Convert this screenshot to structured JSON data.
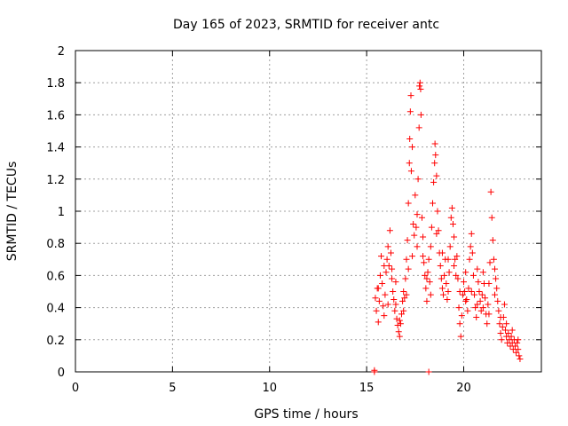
{
  "chart_data": {
    "type": "scatter",
    "title": "Day 165 of 2023, SRMTID for receiver antc",
    "xlabel": "GPS time / hours",
    "ylabel": "SRMTID / TECUs",
    "xlim": [
      0,
      24
    ],
    "ylim": [
      0,
      2
    ],
    "xticks": [
      "0",
      "5",
      "10",
      "15",
      "20"
    ],
    "xtick_values": [
      0,
      5,
      10,
      15,
      20
    ],
    "yticks": [
      "0",
      "0.2",
      "0.4",
      "0.6",
      "0.8",
      "1",
      "1.2",
      "1.4",
      "1.6",
      "1.8",
      "2"
    ],
    "ytick_values": [
      0,
      0.2,
      0.4,
      0.6,
      0.8,
      1.0,
      1.2,
      1.4,
      1.6,
      1.8,
      2.0
    ],
    "grid": true,
    "marker": "+",
    "series_color": "#ff0000",
    "series": [
      {
        "name": "SRMTID",
        "points": [
          [
            15.4,
            0.0
          ],
          [
            15.4,
            0.01
          ],
          [
            18.2,
            0.0
          ],
          [
            15.45,
            0.46
          ],
          [
            15.5,
            0.38
          ],
          [
            15.55,
            0.52
          ],
          [
            15.6,
            0.31
          ],
          [
            15.65,
            0.44
          ],
          [
            15.7,
            0.6
          ],
          [
            15.75,
            0.72
          ],
          [
            15.8,
            0.55
          ],
          [
            15.85,
            0.41
          ],
          [
            15.9,
            0.35
          ],
          [
            15.95,
            0.48
          ],
          [
            16.0,
            0.62
          ],
          [
            16.05,
            0.7
          ],
          [
            16.1,
            0.78
          ],
          [
            16.15,
            0.66
          ],
          [
            16.2,
            0.88
          ],
          [
            16.25,
            0.74
          ],
          [
            16.3,
            0.58
          ],
          [
            16.35,
            0.5
          ],
          [
            16.4,
            0.45
          ],
          [
            16.45,
            0.38
          ],
          [
            16.5,
            0.42
          ],
          [
            16.55,
            0.33
          ],
          [
            16.6,
            0.29
          ],
          [
            16.65,
            0.25
          ],
          [
            16.7,
            0.22
          ],
          [
            16.75,
            0.3
          ],
          [
            16.8,
            0.36
          ],
          [
            16.85,
            0.44
          ],
          [
            16.9,
            0.5
          ],
          [
            16.95,
            0.46
          ],
          [
            17.0,
            0.58
          ],
          [
            17.05,
            0.7
          ],
          [
            17.1,
            0.82
          ],
          [
            17.15,
            1.05
          ],
          [
            17.2,
            1.3
          ],
          [
            17.22,
            1.45
          ],
          [
            17.25,
            1.62
          ],
          [
            17.28,
            1.72
          ],
          [
            17.3,
            1.25
          ],
          [
            17.35,
            1.4
          ],
          [
            17.4,
            0.92
          ],
          [
            17.45,
            0.85
          ],
          [
            17.5,
            1.1
          ],
          [
            17.55,
            0.9
          ],
          [
            17.6,
            0.78
          ],
          [
            17.65,
            1.2
          ],
          [
            17.7,
            1.52
          ],
          [
            17.72,
            1.78
          ],
          [
            17.75,
            1.8
          ],
          [
            17.78,
            1.76
          ],
          [
            17.8,
            1.6
          ],
          [
            17.85,
            0.96
          ],
          [
            17.9,
            0.72
          ],
          [
            17.95,
            0.68
          ],
          [
            18.0,
            0.6
          ],
          [
            18.05,
            0.52
          ],
          [
            18.1,
            0.44
          ],
          [
            18.15,
            0.62
          ],
          [
            18.2,
            0.7
          ],
          [
            18.25,
            0.56
          ],
          [
            18.3,
            0.48
          ],
          [
            18.35,
            0.9
          ],
          [
            18.4,
            1.05
          ],
          [
            18.45,
            1.18
          ],
          [
            18.5,
            1.3
          ],
          [
            18.52,
            1.42
          ],
          [
            18.55,
            1.35
          ],
          [
            18.6,
            1.22
          ],
          [
            18.65,
            1.0
          ],
          [
            18.7,
            0.88
          ],
          [
            18.75,
            0.74
          ],
          [
            18.8,
            0.66
          ],
          [
            18.85,
            0.58
          ],
          [
            18.9,
            0.52
          ],
          [
            18.95,
            0.48
          ],
          [
            19.0,
            0.6
          ],
          [
            19.05,
            0.7
          ],
          [
            19.1,
            0.55
          ],
          [
            19.15,
            0.45
          ],
          [
            19.2,
            0.5
          ],
          [
            19.25,
            0.62
          ],
          [
            19.3,
            0.78
          ],
          [
            19.35,
            0.96
          ],
          [
            19.4,
            1.02
          ],
          [
            19.45,
            0.92
          ],
          [
            19.5,
            0.84
          ],
          [
            19.55,
            0.7
          ],
          [
            19.6,
            0.6
          ],
          [
            19.65,
            0.72
          ],
          [
            19.7,
            0.58
          ],
          [
            19.75,
            0.4
          ],
          [
            19.8,
            0.3
          ],
          [
            19.85,
            0.22
          ],
          [
            19.9,
            0.35
          ],
          [
            19.95,
            0.48
          ],
          [
            20.0,
            0.56
          ],
          [
            20.05,
            0.5
          ],
          [
            20.1,
            0.62
          ],
          [
            20.15,
            0.45
          ],
          [
            20.2,
            0.38
          ],
          [
            20.25,
            0.52
          ],
          [
            20.3,
            0.7
          ],
          [
            20.35,
            0.78
          ],
          [
            20.4,
            0.86
          ],
          [
            20.45,
            0.74
          ],
          [
            20.5,
            0.6
          ],
          [
            20.55,
            0.48
          ],
          [
            20.6,
            0.4
          ],
          [
            20.65,
            0.34
          ],
          [
            20.7,
            0.42
          ],
          [
            20.75,
            0.56
          ],
          [
            20.8,
            0.5
          ],
          [
            20.85,
            0.44
          ],
          [
            20.9,
            0.38
          ],
          [
            20.95,
            0.48
          ],
          [
            21.0,
            0.62
          ],
          [
            21.05,
            0.55
          ],
          [
            21.1,
            0.46
          ],
          [
            21.15,
            0.36
          ],
          [
            21.2,
            0.3
          ],
          [
            21.25,
            0.42
          ],
          [
            21.3,
            0.55
          ],
          [
            21.35,
            0.68
          ],
          [
            21.4,
            1.12
          ],
          [
            21.45,
            0.96
          ],
          [
            21.5,
            0.82
          ],
          [
            21.55,
            0.7
          ],
          [
            21.6,
            0.64
          ],
          [
            21.65,
            0.58
          ],
          [
            21.7,
            0.52
          ],
          [
            21.75,
            0.44
          ],
          [
            21.8,
            0.38
          ],
          [
            21.85,
            0.3
          ],
          [
            21.9,
            0.24
          ],
          [
            21.95,
            0.2
          ],
          [
            22.0,
            0.28
          ],
          [
            22.05,
            0.34
          ],
          [
            22.1,
            0.42
          ],
          [
            22.15,
            0.26
          ],
          [
            22.2,
            0.22
          ],
          [
            22.25,
            0.18
          ],
          [
            22.3,
            0.24
          ],
          [
            22.35,
            0.2
          ],
          [
            22.4,
            0.16
          ],
          [
            22.45,
            0.22
          ],
          [
            22.5,
            0.18
          ],
          [
            22.55,
            0.14
          ],
          [
            22.6,
            0.2
          ],
          [
            22.65,
            0.16
          ],
          [
            22.7,
            0.12
          ],
          [
            22.75,
            0.18
          ],
          [
            22.8,
            0.14
          ],
          [
            22.85,
            0.1
          ],
          [
            22.9,
            0.08
          ],
          [
            16.1,
            0.42
          ],
          [
            16.3,
            0.64
          ],
          [
            16.7,
            0.32
          ],
          [
            17.05,
            0.48
          ],
          [
            17.35,
            0.72
          ],
          [
            17.6,
            0.98
          ],
          [
            17.9,
            0.84
          ],
          [
            18.1,
            0.58
          ],
          [
            18.3,
            0.78
          ],
          [
            18.6,
            0.86
          ],
          [
            18.9,
            0.74
          ],
          [
            19.2,
            0.7
          ],
          [
            19.5,
            0.66
          ],
          [
            19.8,
            0.5
          ],
          [
            20.1,
            0.44
          ],
          [
            20.4,
            0.5
          ],
          [
            20.7,
            0.64
          ],
          [
            21.0,
            0.4
          ],
          [
            21.3,
            0.36
          ],
          [
            21.6,
            0.48
          ],
          [
            21.9,
            0.34
          ],
          [
            22.2,
            0.3
          ],
          [
            22.5,
            0.26
          ],
          [
            22.8,
            0.2
          ],
          [
            15.6,
            0.52
          ],
          [
            15.9,
            0.66
          ],
          [
            16.5,
            0.56
          ],
          [
            16.9,
            0.38
          ],
          [
            17.15,
            0.64
          ]
        ]
      }
    ]
  }
}
